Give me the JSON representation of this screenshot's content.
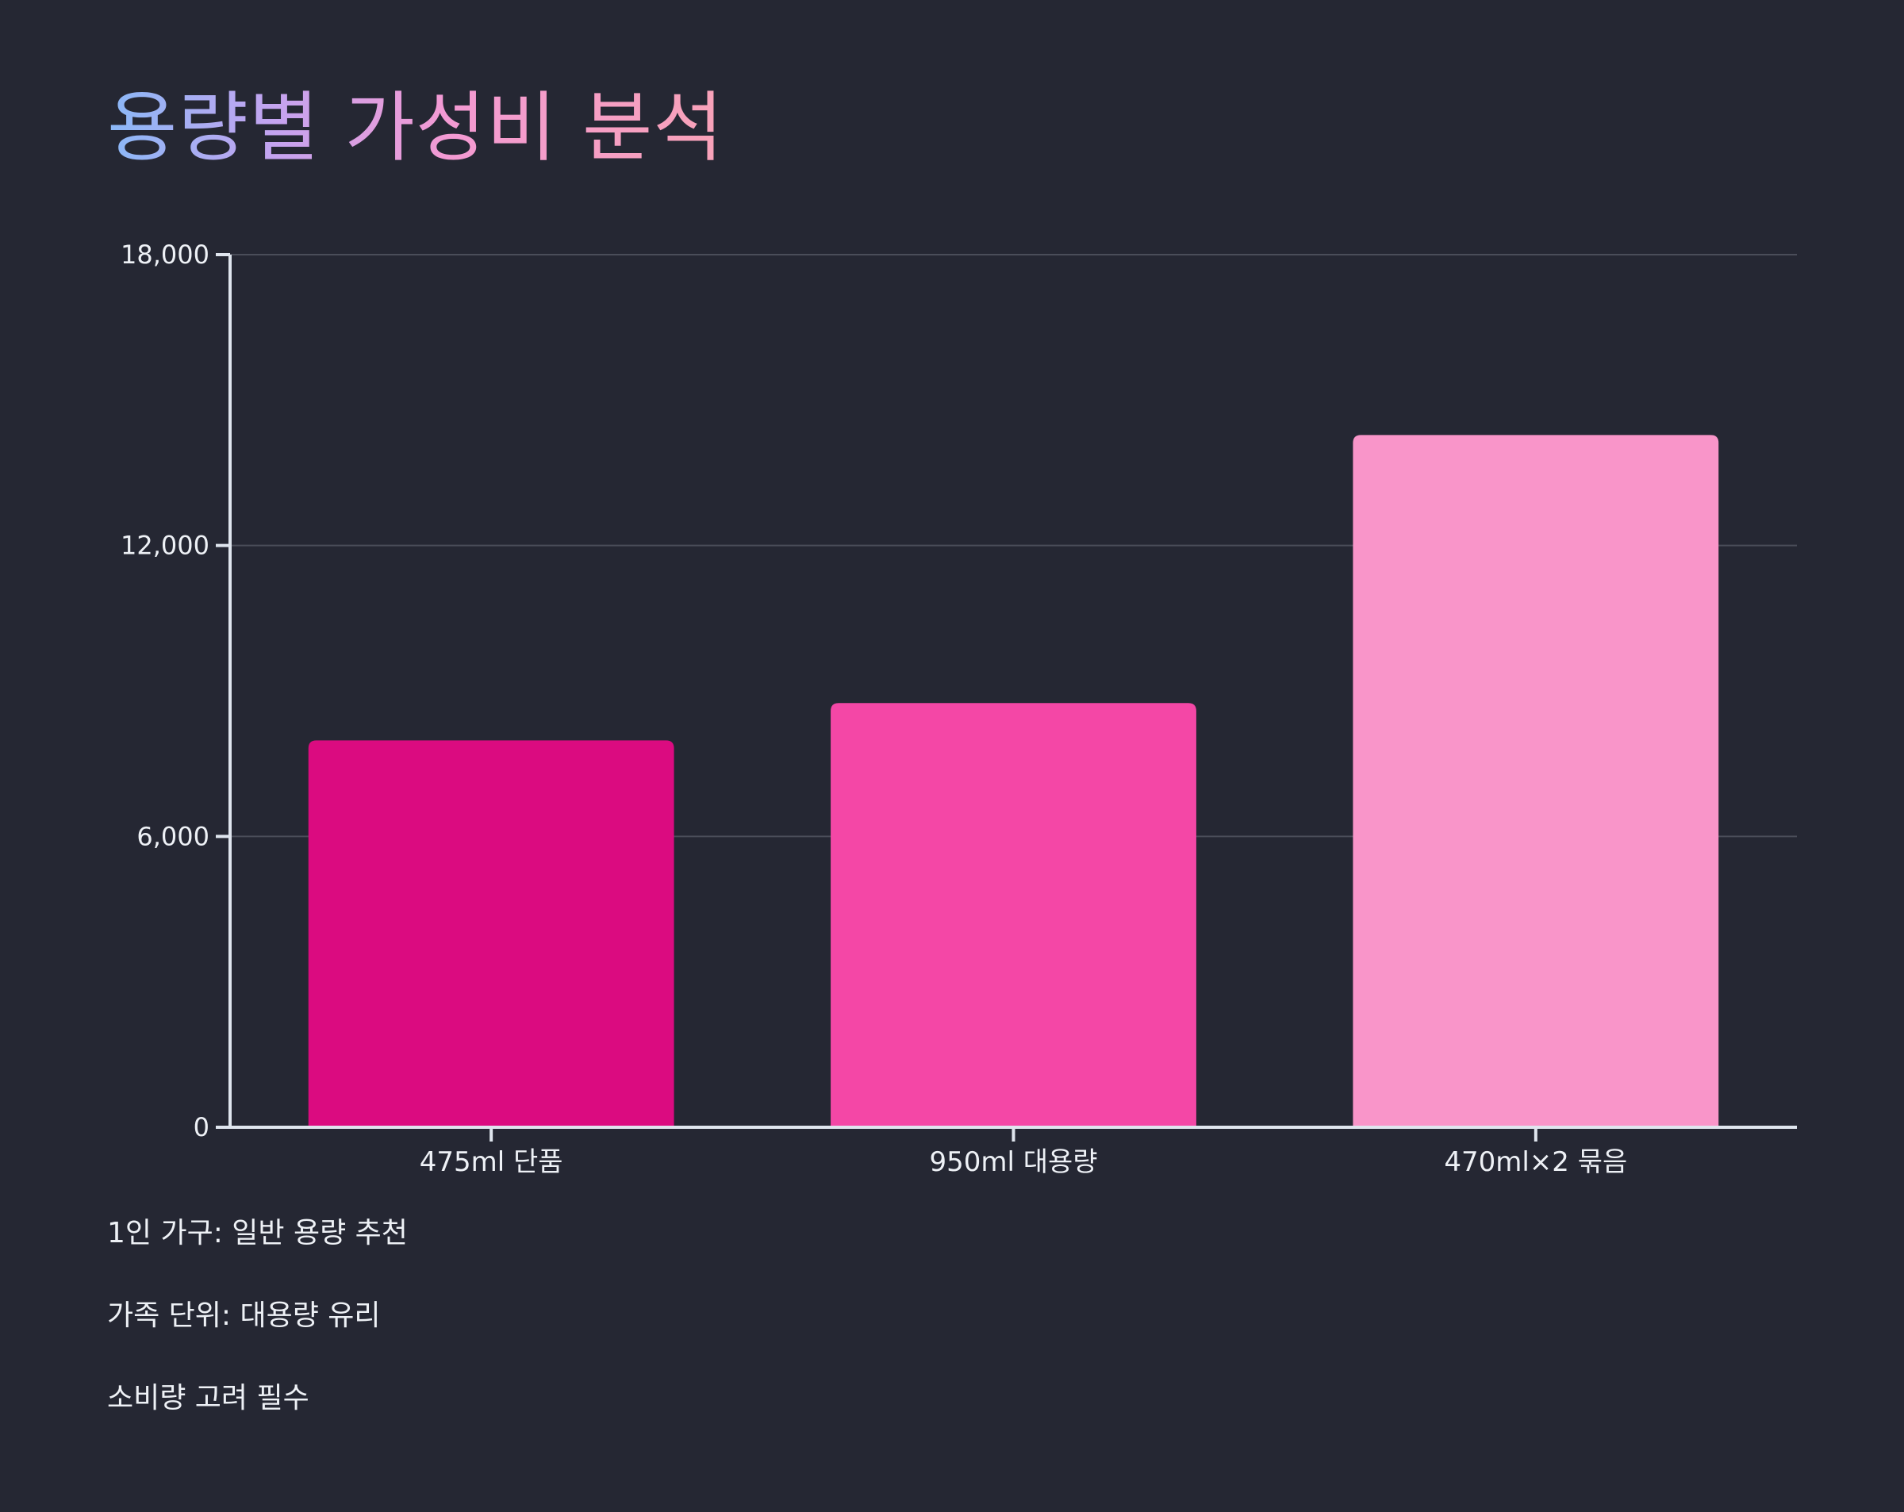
{
  "title": "용량별 가성비 분석",
  "chart_data": {
    "type": "bar",
    "categories": [
      "475ml 단품",
      "950ml 대용량",
      "470ml×2 묶음"
    ],
    "values": [
      7980,
      8750,
      14280
    ],
    "bar_colors": [
      "#db0b80",
      "#f447a6",
      "#f995c9"
    ],
    "yticks": [
      0,
      6000,
      12000,
      18000
    ],
    "ytick_labels": [
      "0",
      "6,000",
      "12,000",
      "18,000"
    ],
    "ylim": [
      0,
      18000
    ],
    "grid": true,
    "xlabel": "",
    "ylabel": ""
  },
  "notes": [
    "1인 가구: 일반 용량 추천",
    "가족 단위: 대용량 유리",
    "소비량 고려 필수"
  ],
  "colors": {
    "background": "#252733",
    "axis": "#dfe5ee",
    "grid": "#4a4d59",
    "title_gradient": [
      "#8ab8f7",
      "#c6a3ef",
      "#f39ad3",
      "#f8a2b8"
    ]
  }
}
